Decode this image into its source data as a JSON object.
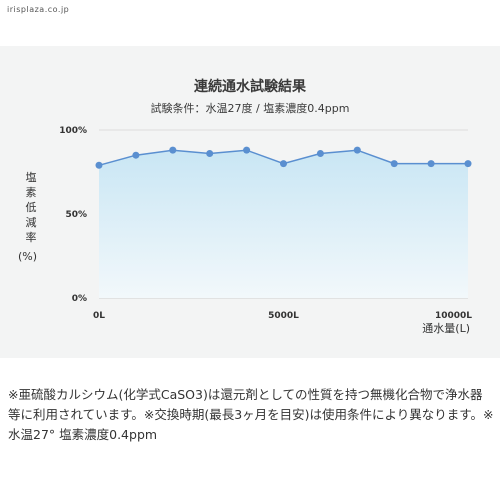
{
  "site": "irisplaza.co.jp",
  "chart_data": {
    "type": "area",
    "title": "連続通水試験結果",
    "subtitle": "試験条件：水温27度 / 塩素濃度0.4ppm",
    "ylabel": "塩素低減率",
    "yunit": "(%)",
    "xlabel": "通水量(L)",
    "x": [
      0,
      1000,
      2000,
      3000,
      4000,
      5000,
      6000,
      7000,
      8000,
      9000,
      10000
    ],
    "values": [
      79,
      85,
      88,
      86,
      88,
      80,
      86,
      88,
      80,
      80,
      80
    ],
    "ylim": [
      0,
      100
    ],
    "xlim": [
      0,
      10000
    ],
    "y_ticks": [
      {
        "value": 0,
        "label": "0%"
      },
      {
        "value": 50,
        "label": "50%"
      },
      {
        "value": 100,
        "label": "100%"
      }
    ],
    "x_ticks": [
      {
        "value": 0,
        "label": "0L"
      },
      {
        "value": 5000,
        "label": "5000L"
      },
      {
        "value": 10000,
        "label": "10000L"
      }
    ],
    "colors": {
      "line": "#5a8fd0",
      "point": "#5a8fd0",
      "fill_top": "#c9e6f4",
      "fill_bottom": "#f2f8fb"
    },
    "grid": true,
    "legend": "none"
  },
  "note": "※亜硫酸カルシウム(化学式CaSO3)は還元剤としての性質を持つ無機化合物で浄水器等に利用されています。※交換時期(最長3ヶ月を目安)は使用条件により異なります。※水温27° 塩素濃度0.4ppm"
}
